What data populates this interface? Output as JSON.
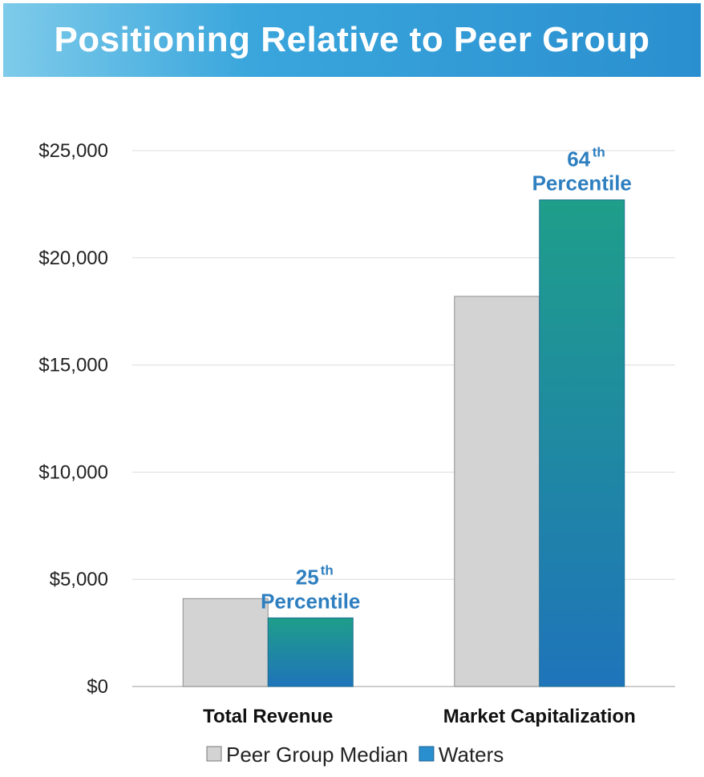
{
  "chart_data": {
    "type": "bar",
    "title": "Positioning Relative to Peer Group",
    "categories": [
      "Total Revenue",
      "Market Capitalization"
    ],
    "series": [
      {
        "name": "Peer Group Median",
        "values": [
          4100,
          18200
        ],
        "color": "#d3d3d3"
      },
      {
        "name": "Waters",
        "values": [
          3200,
          22700
        ],
        "color": "#1e8fa8"
      }
    ],
    "ylim": [
      0,
      25000
    ],
    "yticks": [
      0,
      5000,
      10000,
      15000,
      20000,
      25000
    ],
    "ytick_labels": [
      "$0",
      "$5,000",
      "$10,000",
      "$15,000",
      "$20,000",
      "$25,000"
    ],
    "grid": true,
    "legend_position": "bottom",
    "annotations": [
      {
        "category": "Total Revenue",
        "number": "25",
        "suffix": "th",
        "text": "Percentile"
      },
      {
        "category": "Market Capitalization",
        "number": "64",
        "suffix": "th",
        "text": "Percentile"
      }
    ]
  }
}
